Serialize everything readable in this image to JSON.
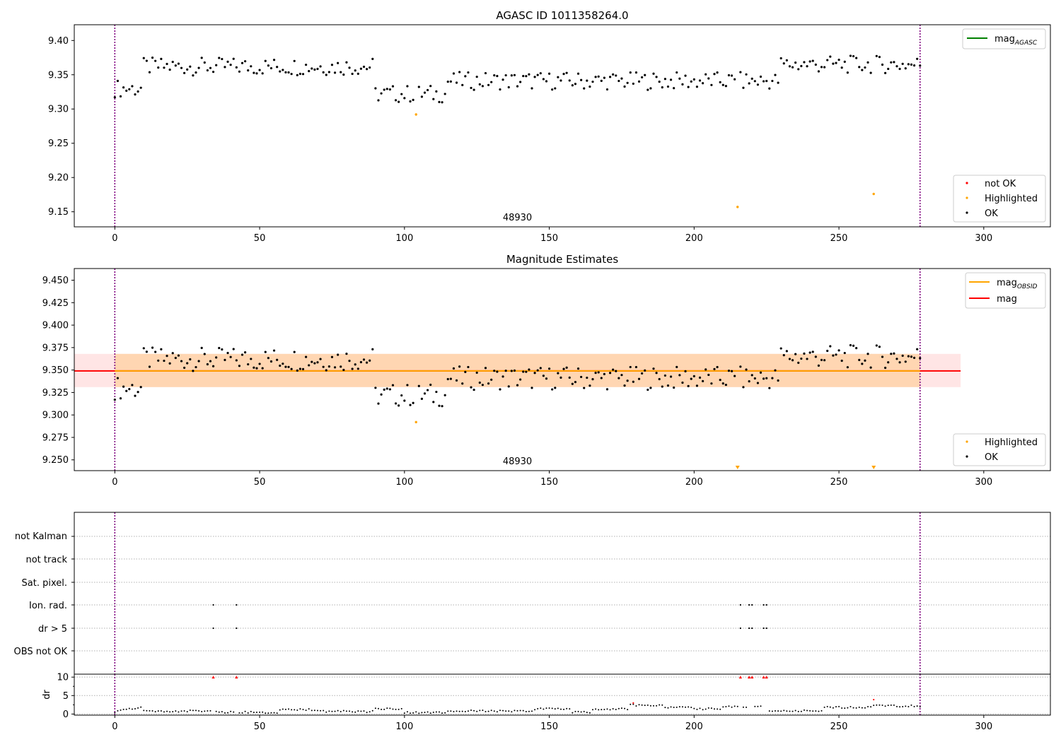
{
  "chart_data": [
    {
      "type": "scatter",
      "title": "AGASC ID 1011358264.0",
      "xlim": [
        -14,
        323
      ],
      "ylim": [
        9.128,
        9.423
      ],
      "xticks": [
        0,
        50,
        100,
        150,
        200,
        250,
        300
      ],
      "yticks": [
        9.15,
        9.2,
        9.25,
        9.3,
        9.35,
        9.4
      ],
      "ytick_labels": [
        "9.15",
        "9.20",
        "9.25",
        "9.30",
        "9.35",
        "9.40"
      ],
      "grid": false,
      "obsid_label": "48930",
      "obsid_label_x": 139,
      "obsid_bounds": [
        0,
        278
      ],
      "legend_top": {
        "placement": "top-right",
        "entries": [
          {
            "name": "mag",
            "sub": "AGASC",
            "color": "#008000",
            "kind": "line"
          }
        ]
      },
      "legend_bottom": {
        "placement": "bottom-right",
        "entries": [
          {
            "name": "not OK",
            "color": "#ff0000",
            "kind": "dot"
          },
          {
            "name": "Highlighted",
            "color": "#ffa500",
            "kind": "dot"
          },
          {
            "name": "OK",
            "color": "#000000",
            "kind": "dot"
          }
        ]
      },
      "series": [
        {
          "name": "Highlighted",
          "color": "#ffa500",
          "points": [
            [
              104,
              9.292
            ],
            [
              215,
              9.157
            ],
            [
              262,
              9.176
            ]
          ]
        }
      ]
    },
    {
      "type": "scatter",
      "title": "Magnitude Estimates",
      "xlim": [
        -14,
        323
      ],
      "ylim": [
        9.238,
        9.463
      ],
      "xticks": [
        0,
        50,
        100,
        150,
        200,
        250,
        300
      ],
      "yticks": [
        9.25,
        9.275,
        9.3,
        9.325,
        9.35,
        9.375,
        9.4,
        9.425,
        9.45
      ],
      "ytick_labels": [
        "9.250",
        "9.275",
        "9.300",
        "9.325",
        "9.350",
        "9.375",
        "9.400",
        "9.425",
        "9.450"
      ],
      "grid": false,
      "obsid_label": "48930",
      "obsid_label_x": 139,
      "obsid_bounds": [
        0,
        278
      ],
      "mag_obsid": {
        "value": 9.349,
        "band": [
          9.331,
          9.368
        ],
        "x_range": [
          0,
          278
        ],
        "color": "#ffa500"
      },
      "mag": {
        "value": 9.349,
        "band": [
          9.331,
          9.368
        ],
        "x_range": [
          -14,
          292
        ],
        "color": "#ff0000"
      },
      "legend_top": {
        "placement": "top-right",
        "entries": [
          {
            "name": "mag",
            "sub": "OBSID",
            "color": "#ffa500",
            "kind": "line"
          },
          {
            "name": "mag",
            "sub": "",
            "color": "#ff0000",
            "kind": "line"
          }
        ]
      },
      "legend_bottom": {
        "placement": "bottom-right",
        "entries": [
          {
            "name": "Highlighted",
            "color": "#ffa500",
            "kind": "dot"
          },
          {
            "name": "OK",
            "color": "#000000",
            "kind": "dot"
          }
        ]
      },
      "series": [
        {
          "name": "Highlighted",
          "color": "#ffa500",
          "points": [
            [
              104,
              9.292
            ]
          ]
        },
        {
          "name": "Highlighted (below range)",
          "color": "#ffa500",
          "marker": "triangle-down",
          "points": [
            [
              215,
              9.24
            ],
            [
              262,
              9.24
            ]
          ]
        }
      ]
    },
    {
      "type": "scatter",
      "title": "",
      "xlim": [
        -14,
        323
      ],
      "categories": [
        "not Kalman",
        "not track",
        "Sat. pixel.",
        "Ion. rad.",
        "dr > 5",
        "OBS not OK"
      ],
      "flags": {
        "Ion. rad.": [
          34,
          42,
          216,
          219,
          220,
          224,
          225
        ],
        "dr > 5": [
          34,
          42,
          216,
          219,
          220,
          224,
          225
        ]
      },
      "obsid_bounds": [
        0,
        278
      ]
    },
    {
      "type": "line",
      "title": "",
      "ylabel": "dr",
      "xlim": [
        -14,
        323
      ],
      "ylim": [
        -0.3,
        10.8
      ],
      "xticks": [
        0,
        50,
        100,
        150,
        200,
        250,
        300
      ],
      "yticks": [
        0,
        5,
        10
      ],
      "obsid_bounds": [
        0,
        278
      ],
      "over_limit": [
        34,
        42,
        216,
        219,
        220,
        224,
        225
      ],
      "red_points": [
        [
          179,
          3.0
        ],
        [
          262,
          3.9
        ]
      ]
    }
  ]
}
